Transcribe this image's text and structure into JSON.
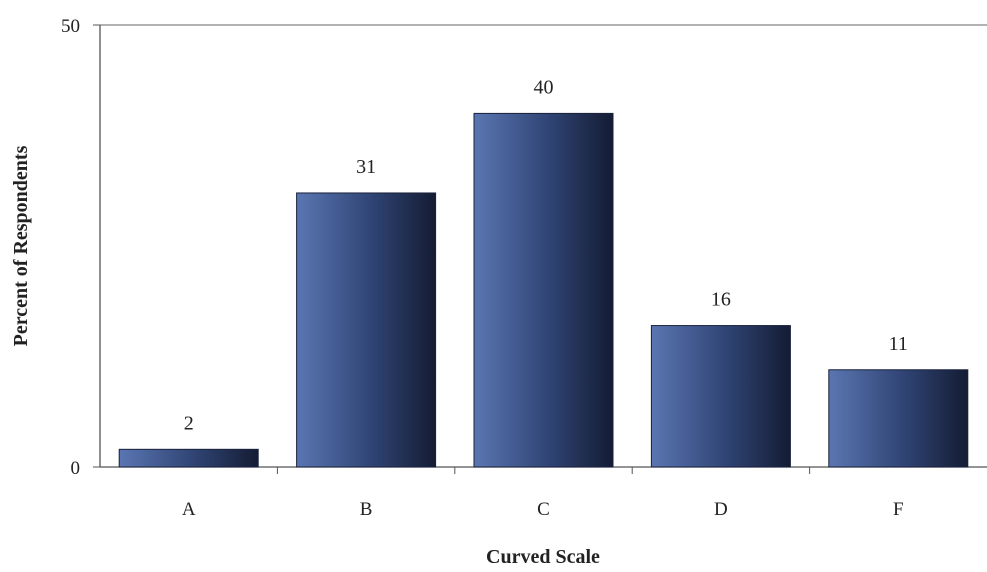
{
  "chart_data": {
    "type": "bar",
    "categories": [
      "A",
      "B",
      "C",
      "D",
      "F"
    ],
    "values": [
      2,
      31,
      40,
      16,
      11
    ],
    "data_labels": [
      "2",
      "31",
      "40",
      "16",
      "11"
    ],
    "xlabel": "Curved Scale",
    "ylabel": "Percent of Respondents",
    "ylim": [
      0,
      50
    ],
    "yticks": [
      "0",
      "50"
    ],
    "grid": false,
    "bar_color": "#2f4373"
  }
}
